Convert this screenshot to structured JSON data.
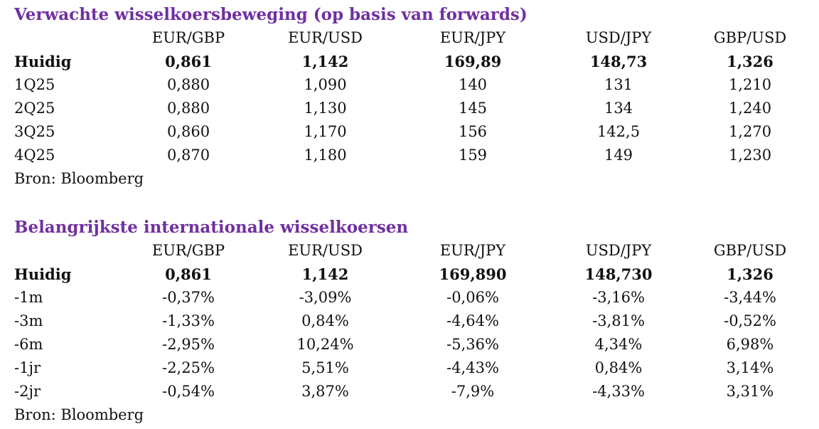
{
  "title_color": "#7030A0",
  "source_text": "Bron: Bloomberg",
  "forward_table": {
    "title": "Verwachte wisselkoersbeweging (op basis van forwards)",
    "headers": [
      "",
      "EUR/GBP",
      "EUR/USD",
      "EUR/JPY",
      "USD/JPY",
      "GBP/USD"
    ],
    "rows": [
      [
        "Huidig",
        "0,861",
        "1,142",
        "169,89",
        "148,73",
        "1,326"
      ],
      [
        "1Q25",
        "0,880",
        "1,090",
        "140",
        "131",
        "1,210"
      ],
      [
        "2Q25",
        "0,880",
        "1,130",
        "145",
        "134",
        "1,240"
      ],
      [
        "3Q25",
        "0,860",
        "1,170",
        "156",
        "142,5",
        "1,270"
      ],
      [
        "4Q25",
        "0,870",
        "1,180",
        "159",
        "149",
        "1,230"
      ]
    ]
  },
  "rates_table": {
    "title": "Belangrijkste internationale wisselkoersen",
    "headers": [
      "",
      "EUR/GBP",
      "EUR/USD",
      "EUR/JPY",
      "USD/JPY",
      "GBP/USD"
    ],
    "rows": [
      [
        "Huidig",
        "0,861",
        "1,142",
        "169,890",
        "148,730",
        "1,326"
      ],
      [
        "-1m",
        "-0,37%",
        "-3,09%",
        "-0,06%",
        "-3,16%",
        "-3,44%"
      ],
      [
        "-3m",
        "-1,33%",
        "0,84%",
        "-4,64%",
        "-3,81%",
        "-0,52%"
      ],
      [
        "-6m",
        "-2,95%",
        "10,24%",
        "-5,36%",
        "4,34%",
        "6,98%"
      ],
      [
        "-1jr",
        "-2,25%",
        "5,51%",
        "-4,43%",
        "0,84%",
        "3,14%"
      ],
      [
        "-2jr",
        "-0,54%",
        "3,87%",
        "-7,9%",
        "-4,33%",
        "3,31%"
      ]
    ]
  }
}
